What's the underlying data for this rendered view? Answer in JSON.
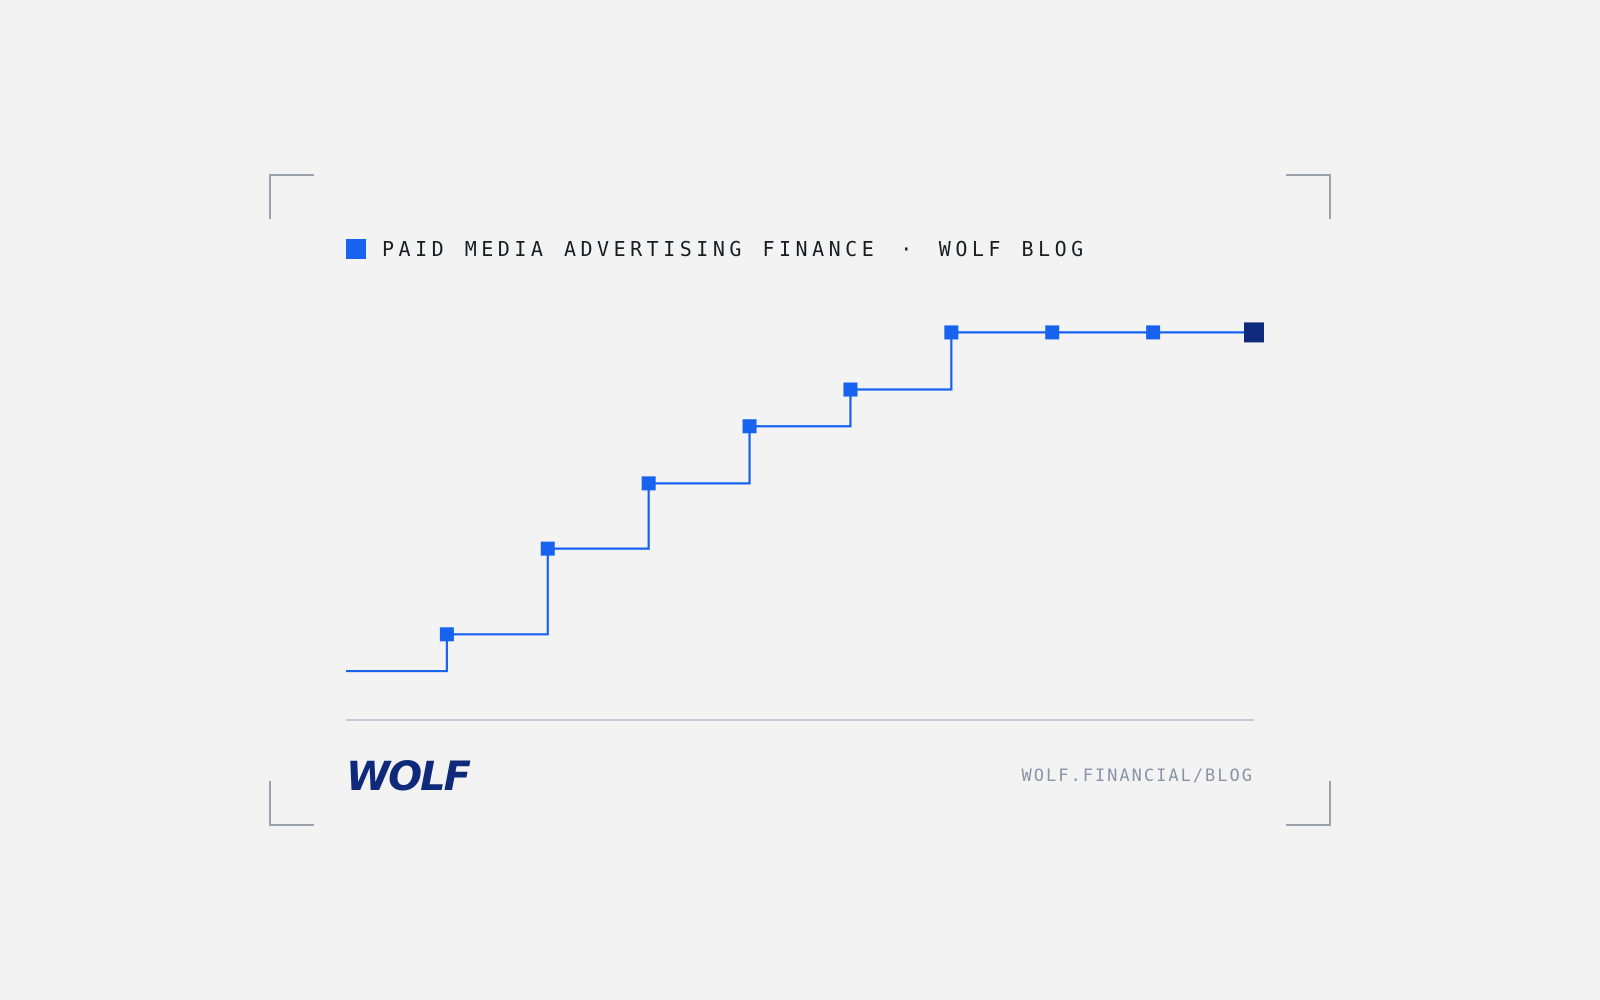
{
  "header": {
    "topic": "PAID MEDIA ADVERTISING FINANCE",
    "separator": "·",
    "site": "WOLF BLOG"
  },
  "chart_data": {
    "type": "step",
    "categories": [
      null,
      null,
      null,
      null,
      null,
      null,
      null,
      null,
      null,
      null
    ],
    "values": [
      12,
      21,
      42,
      58,
      72,
      81,
      95,
      95,
      95,
      95
    ],
    "color": "#1763f0",
    "last_color": "#0f2a7a",
    "ylim": [
      0,
      100
    ]
  },
  "footer": {
    "logo": "WOLF",
    "url": "WOLF.FINANCIAL/BLOG"
  }
}
